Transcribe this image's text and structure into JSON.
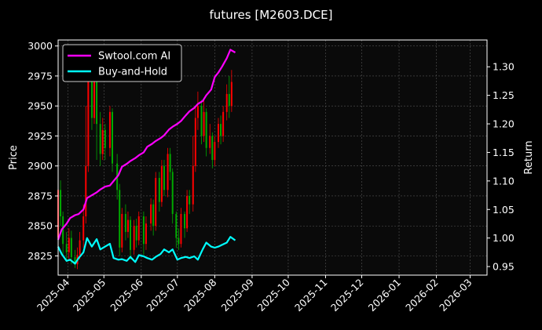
{
  "chart_data": {
    "type": "line",
    "title": "futures [M2603.DCE]",
    "xlabel": "",
    "ylabel": "Price",
    "y2label": "Return",
    "grid": true,
    "legend_position": "top-left",
    "background": "#000000",
    "x_tick_labels": [
      "2025-04",
      "2025-05",
      "2025-06",
      "2025-07",
      "2025-08",
      "2025-09",
      "2025-10",
      "2025-11",
      "2025-12",
      "2026-01",
      "2026-02",
      "2026-03"
    ],
    "x_range": [
      "2025-03-24",
      "2026-03-15"
    ],
    "y_ticks": [
      2825,
      2850,
      2875,
      2900,
      2925,
      2950,
      2975,
      3000
    ],
    "ylim": [
      2809,
      3005
    ],
    "y2_ticks": [
      0.95,
      1.0,
      1.05,
      1.1,
      1.15,
      1.2,
      1.25,
      1.3
    ],
    "y2lim": [
      0.935,
      1.347
    ],
    "colors": {
      "ai": "#ff00ff",
      "bh": "#00ffff",
      "up": "#ff0000",
      "down": "#00aa00"
    },
    "series": [
      {
        "name": "Swtool.com AI",
        "axis": "return",
        "color": "#ff00ff",
        "points": [
          [
            "2025-03-24",
            0.997
          ],
          [
            "2025-03-27",
            1.015
          ],
          [
            "2025-03-31",
            1.025
          ],
          [
            "2025-04-03",
            1.035
          ],
          [
            "2025-04-07",
            1.04
          ],
          [
            "2025-04-10",
            1.042
          ],
          [
            "2025-04-14",
            1.05
          ],
          [
            "2025-04-17",
            1.07
          ],
          [
            "2025-04-21",
            1.075
          ],
          [
            "2025-04-25",
            1.08
          ],
          [
            "2025-04-28",
            1.085
          ],
          [
            "2025-05-02",
            1.09
          ],
          [
            "2025-05-06",
            1.092
          ],
          [
            "2025-05-09",
            1.1
          ],
          [
            "2025-05-13",
            1.11
          ],
          [
            "2025-05-16",
            1.125
          ],
          [
            "2025-05-20",
            1.13
          ],
          [
            "2025-05-23",
            1.135
          ],
          [
            "2025-05-27",
            1.14
          ],
          [
            "2025-05-30",
            1.145
          ],
          [
            "2025-06-03",
            1.15
          ],
          [
            "2025-06-06",
            1.16
          ],
          [
            "2025-06-10",
            1.165
          ],
          [
            "2025-06-13",
            1.17
          ],
          [
            "2025-06-17",
            1.175
          ],
          [
            "2025-06-20",
            1.18
          ],
          [
            "2025-06-24",
            1.19
          ],
          [
            "2025-06-27",
            1.195
          ],
          [
            "2025-07-01",
            1.2
          ],
          [
            "2025-07-04",
            1.205
          ],
          [
            "2025-07-08",
            1.215
          ],
          [
            "2025-07-11",
            1.222
          ],
          [
            "2025-07-15",
            1.228
          ],
          [
            "2025-07-18",
            1.235
          ],
          [
            "2025-07-22",
            1.24
          ],
          [
            "2025-07-25",
            1.25
          ],
          [
            "2025-07-29",
            1.26
          ],
          [
            "2025-08-01",
            1.282
          ],
          [
            "2025-08-04",
            1.29
          ],
          [
            "2025-08-07",
            1.3
          ],
          [
            "2025-08-11",
            1.315
          ],
          [
            "2025-08-14",
            1.33
          ],
          [
            "2025-08-18",
            1.325
          ]
        ]
      },
      {
        "name": "Buy-and-Hold",
        "axis": "return",
        "color": "#00ffff",
        "points": [
          [
            "2025-03-24",
            0.985
          ],
          [
            "2025-03-27",
            0.972
          ],
          [
            "2025-03-31",
            0.96
          ],
          [
            "2025-04-03",
            0.962
          ],
          [
            "2025-04-07",
            0.955
          ],
          [
            "2025-04-10",
            0.965
          ],
          [
            "2025-04-14",
            0.975
          ],
          [
            "2025-04-17",
            1.0
          ],
          [
            "2025-04-21",
            0.985
          ],
          [
            "2025-04-25",
            0.998
          ],
          [
            "2025-04-28",
            0.98
          ],
          [
            "2025-05-02",
            0.985
          ],
          [
            "2025-05-06",
            0.99
          ],
          [
            "2025-05-09",
            0.965
          ],
          [
            "2025-05-13",
            0.962
          ],
          [
            "2025-05-16",
            0.963
          ],
          [
            "2025-05-20",
            0.96
          ],
          [
            "2025-05-23",
            0.967
          ],
          [
            "2025-05-27",
            0.958
          ],
          [
            "2025-05-30",
            0.97
          ],
          [
            "2025-06-03",
            0.968
          ],
          [
            "2025-06-06",
            0.965
          ],
          [
            "2025-06-10",
            0.962
          ],
          [
            "2025-06-13",
            0.967
          ],
          [
            "2025-06-17",
            0.972
          ],
          [
            "2025-06-20",
            0.98
          ],
          [
            "2025-06-24",
            0.975
          ],
          [
            "2025-06-27",
            0.98
          ],
          [
            "2025-07-01",
            0.962
          ],
          [
            "2025-07-04",
            0.965
          ],
          [
            "2025-07-08",
            0.967
          ],
          [
            "2025-07-11",
            0.965
          ],
          [
            "2025-07-15",
            0.968
          ],
          [
            "2025-07-18",
            0.962
          ],
          [
            "2025-07-22",
            0.98
          ],
          [
            "2025-07-25",
            0.992
          ],
          [
            "2025-07-29",
            0.985
          ],
          [
            "2025-08-01",
            0.983
          ],
          [
            "2025-08-04",
            0.985
          ],
          [
            "2025-08-07",
            0.988
          ],
          [
            "2025-08-11",
            0.992
          ],
          [
            "2025-08-14",
            1.002
          ],
          [
            "2025-08-18",
            0.996
          ]
        ]
      }
    ],
    "candles": [
      [
        "2025-03-24",
        2840,
        2880,
        2832,
        2905
      ],
      [
        "2025-03-26",
        2880,
        2858,
        2850,
        2888
      ],
      [
        "2025-03-28",
        2858,
        2835,
        2826,
        2862
      ],
      [
        "2025-03-31",
        2835,
        2828,
        2820,
        2845
      ],
      [
        "2025-04-02",
        2828,
        2840,
        2822,
        2848
      ],
      [
        "2025-04-04",
        2840,
        2824,
        2818,
        2846
      ],
      [
        "2025-04-07",
        2824,
        2818,
        2815,
        2830
      ],
      [
        "2025-04-09",
        2818,
        2826,
        2814,
        2832
      ],
      [
        "2025-04-11",
        2826,
        2838,
        2822,
        2845
      ],
      [
        "2025-04-14",
        2838,
        2858,
        2832,
        2868
      ],
      [
        "2025-04-16",
        2858,
        2900,
        2852,
        2950
      ],
      [
        "2025-04-18",
        2900,
        2975,
        2895,
        2990
      ],
      [
        "2025-04-21",
        2975,
        2940,
        2930,
        2985
      ],
      [
        "2025-04-23",
        2940,
        2970,
        2935,
        2980
      ],
      [
        "2025-04-25",
        2970,
        2935,
        2905,
        2978
      ],
      [
        "2025-04-28",
        2935,
        2910,
        2900,
        2945
      ],
      [
        "2025-04-30",
        2910,
        2930,
        2905,
        2940
      ],
      [
        "2025-05-02",
        2930,
        2915,
        2905,
        2935
      ],
      [
        "2025-05-06",
        2915,
        2945,
        2908,
        2950
      ],
      [
        "2025-05-08",
        2945,
        2902,
        2895,
        2948
      ],
      [
        "2025-05-12",
        2902,
        2880,
        2872,
        2910
      ],
      [
        "2025-05-14",
        2880,
        2832,
        2825,
        2885
      ],
      [
        "2025-05-16",
        2832,
        2860,
        2828,
        2865
      ],
      [
        "2025-05-19",
        2860,
        2845,
        2838,
        2868
      ],
      [
        "2025-05-21",
        2845,
        2855,
        2840,
        2862
      ],
      [
        "2025-05-23",
        2855,
        2830,
        2822,
        2858
      ],
      [
        "2025-05-26",
        2830,
        2850,
        2826,
        2855
      ],
      [
        "2025-05-28",
        2850,
        2838,
        2832,
        2856
      ],
      [
        "2025-05-30",
        2838,
        2858,
        2834,
        2862
      ],
      [
        "2025-06-03",
        2858,
        2835,
        2826,
        2862
      ],
      [
        "2025-06-05",
        2835,
        2852,
        2830,
        2858
      ],
      [
        "2025-06-09",
        2852,
        2868,
        2846,
        2873
      ],
      [
        "2025-06-11",
        2868,
        2850,
        2842,
        2872
      ],
      [
        "2025-06-13",
        2850,
        2890,
        2846,
        2895
      ],
      [
        "2025-06-16",
        2890,
        2870,
        2862,
        2895
      ],
      [
        "2025-06-18",
        2870,
        2900,
        2866,
        2905
      ],
      [
        "2025-06-20",
        2900,
        2880,
        2875,
        2905
      ],
      [
        "2025-06-23",
        2880,
        2910,
        2874,
        2915
      ],
      [
        "2025-06-25",
        2910,
        2895,
        2888,
        2915
      ],
      [
        "2025-06-27",
        2895,
        2860,
        2852,
        2898
      ],
      [
        "2025-06-30",
        2860,
        2840,
        2832,
        2862
      ],
      [
        "2025-07-02",
        2840,
        2835,
        2830,
        2848
      ],
      [
        "2025-07-04",
        2835,
        2860,
        2832,
        2865
      ],
      [
        "2025-07-07",
        2860,
        2848,
        2840,
        2862
      ],
      [
        "2025-07-09",
        2848,
        2875,
        2845,
        2880
      ],
      [
        "2025-07-11",
        2875,
        2868,
        2860,
        2880
      ],
      [
        "2025-07-14",
        2868,
        2900,
        2862,
        2925
      ],
      [
        "2025-07-16",
        2900,
        2940,
        2895,
        2950
      ],
      [
        "2025-07-18",
        2940,
        2950,
        2930,
        2962
      ],
      [
        "2025-07-21",
        2950,
        2925,
        2918,
        2955
      ],
      [
        "2025-07-23",
        2925,
        2945,
        2920,
        2955
      ],
      [
        "2025-07-25",
        2945,
        2915,
        2908,
        2948
      ],
      [
        "2025-07-28",
        2915,
        2925,
        2910,
        2935
      ],
      [
        "2025-07-30",
        2925,
        2905,
        2898,
        2928
      ],
      [
        "2025-08-01",
        2905,
        2920,
        2900,
        2925
      ],
      [
        "2025-08-04",
        2920,
        2935,
        2915,
        2940
      ],
      [
        "2025-08-06",
        2935,
        2925,
        2918,
        2942
      ],
      [
        "2025-08-08",
        2925,
        2945,
        2920,
        2950
      ],
      [
        "2025-08-11",
        2945,
        2960,
        2938,
        2968
      ],
      [
        "2025-08-13",
        2960,
        2950,
        2940,
        2975
      ],
      [
        "2025-08-15",
        2950,
        2970,
        2945,
        2980
      ]
    ]
  }
}
